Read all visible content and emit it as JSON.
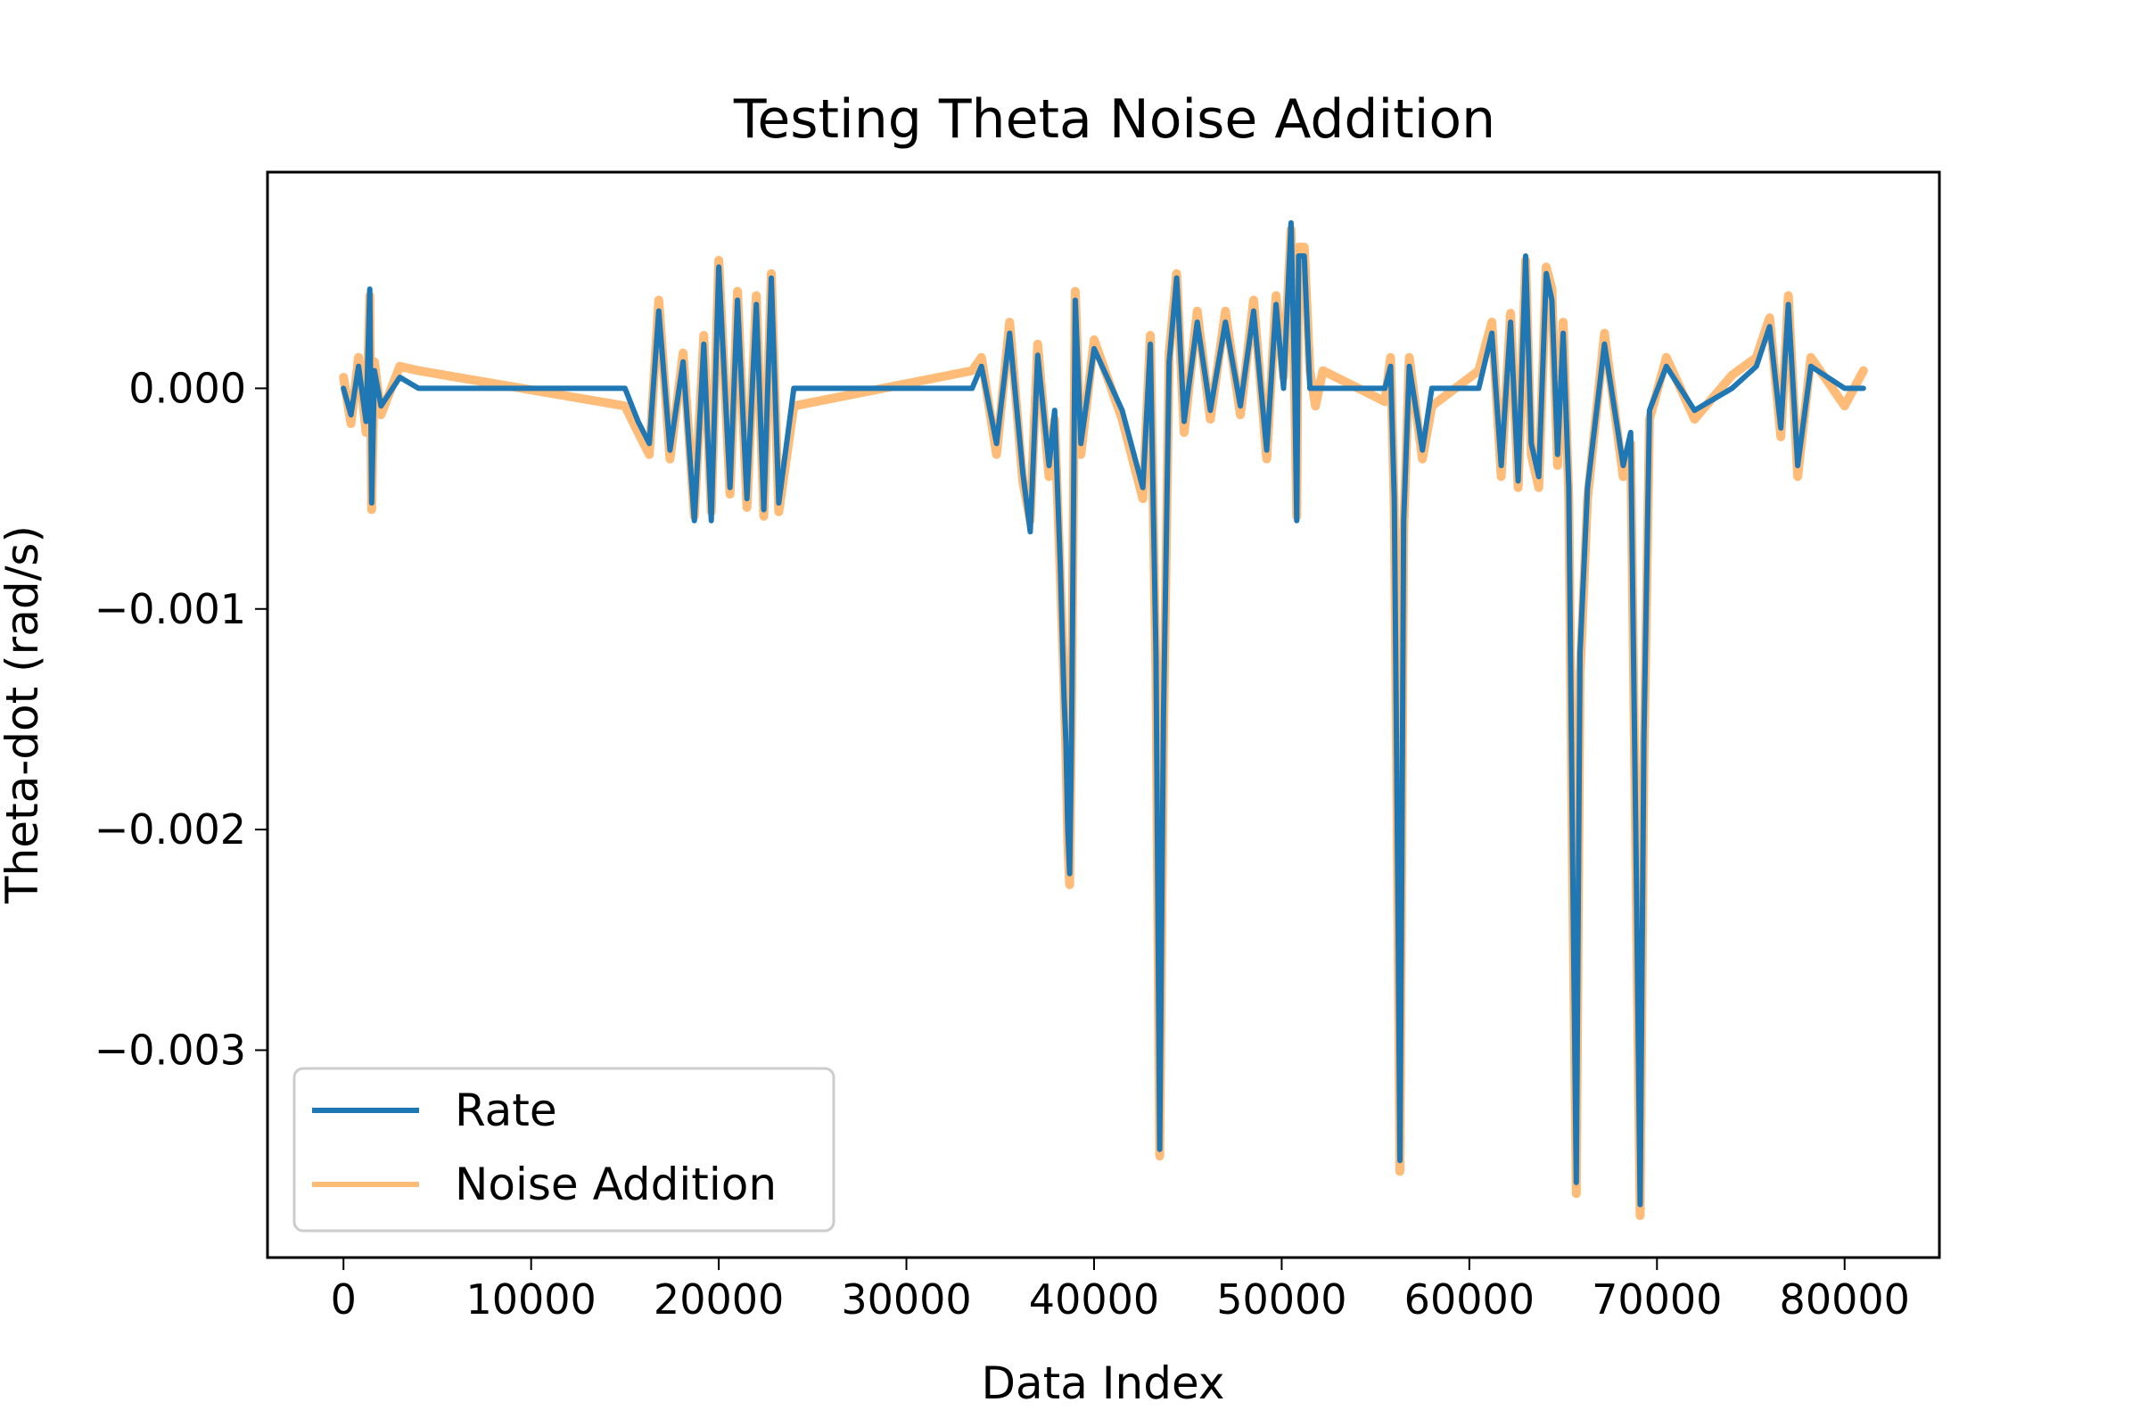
{
  "chart_data": {
    "type": "line",
    "title": "Testing Theta Noise Addition",
    "xlabel": "Data Index",
    "ylabel": "Theta-dot (rad/s)",
    "xlim": [
      -4050,
      85050
    ],
    "ylim": [
      -0.00394,
      0.00098
    ],
    "xticks": [
      0,
      10000,
      20000,
      30000,
      40000,
      50000,
      60000,
      70000,
      80000
    ],
    "xtick_labels": [
      "0",
      "10000",
      "20000",
      "30000",
      "40000",
      "50000",
      "60000",
      "70000",
      "80000"
    ],
    "yticks": [
      0.0,
      -0.001,
      -0.002,
      -0.003
    ],
    "ytick_labels": [
      "0.000",
      "−0.001",
      "−0.002",
      "−0.003"
    ],
    "grid": false,
    "legend_position": "lower-left",
    "series": [
      {
        "name": "Rate",
        "color": "#1f77b4",
        "x": [
          0,
          400,
          800,
          1200,
          1400,
          1500,
          1650,
          2000,
          3000,
          4000,
          15000,
          15700,
          16300,
          16800,
          17400,
          18100,
          18700,
          19200,
          19600,
          20000,
          20600,
          21000,
          21500,
          22000,
          22400,
          22800,
          23200,
          24000,
          33500,
          34000,
          34800,
          35500,
          36200,
          36600,
          37000,
          37600,
          37900,
          38200,
          38400,
          38500,
          38600,
          38700,
          38800,
          39000,
          39300,
          40000,
          41500,
          42600,
          43000,
          43300,
          43500,
          43700,
          44000,
          44400,
          44800,
          45500,
          46200,
          47000,
          47800,
          48500,
          49200,
          49700,
          50100,
          50500,
          50700,
          50800,
          50900,
          51200,
          51500,
          51800,
          52200,
          55500,
          55800,
          56000,
          56200,
          56300,
          56400,
          56500,
          56800,
          57500,
          58000,
          60500,
          61200,
          61700,
          62200,
          62600,
          63000,
          63300,
          63700,
          64100,
          64400,
          64700,
          65000,
          65300,
          65500,
          65700,
          65900,
          66300,
          67200,
          68200,
          68600,
          68900,
          69100,
          69300,
          69600,
          70500,
          72000,
          74000,
          75300,
          76000,
          76600,
          77000,
          77500,
          78200,
          80000,
          81000
        ],
        "y": [
          0.0,
          -0.00012,
          0.0001,
          -0.00015,
          0.00045,
          -0.00052,
          8e-05,
          -8e-05,
          5e-05,
          0.0,
          0.0,
          -0.00015,
          -0.00025,
          0.00035,
          -0.00028,
          0.00012,
          -0.0006,
          0.0002,
          -0.0006,
          0.00055,
          -0.00045,
          0.0004,
          -0.0005,
          0.00038,
          -0.00055,
          0.0005,
          -0.00052,
          0.0,
          0.0,
          0.0001,
          -0.00025,
          0.00025,
          -0.00038,
          -0.00065,
          0.00015,
          -0.00035,
          -0.0001,
          -0.0008,
          -0.0014,
          -0.0016,
          -0.002,
          -0.0022,
          -0.0016,
          0.0004,
          -0.00025,
          0.00018,
          -0.0001,
          -0.00045,
          0.0002,
          -0.0012,
          -0.00345,
          -0.0015,
          0.00012,
          0.0005,
          -0.00015,
          0.0003,
          -0.0001,
          0.0003,
          -8e-05,
          0.00035,
          -0.00028,
          0.00038,
          0.0,
          0.00075,
          0.0,
          -0.0006,
          0.0006,
          0.0006,
          0.0,
          0.0,
          0.0,
          0.0,
          0.0001,
          -0.0005,
          -0.0024,
          -0.0035,
          -0.0022,
          -0.0006,
          0.0001,
          -0.00028,
          0.0,
          0.0,
          0.00025,
          -0.00035,
          0.0003,
          -0.00042,
          0.0006,
          -0.00025,
          -0.0004,
          0.00052,
          0.0004,
          -0.0003,
          0.00025,
          -0.00045,
          -0.0021,
          -0.0036,
          -0.0012,
          -0.00045,
          0.0002,
          -0.00035,
          -0.0002,
          -0.0022,
          -0.0037,
          -0.0016,
          -0.0001,
          0.0001,
          -0.0001,
          0.0,
          0.0001,
          0.00028,
          -0.00018,
          0.00038,
          -0.00035,
          0.0001,
          0.0,
          0.0
        ]
      },
      {
        "name": "Noise Addition",
        "color": "#ffbb78",
        "x": [
          0,
          400,
          800,
          1200,
          1400,
          1500,
          1650,
          2000,
          3000,
          4000,
          15000,
          15700,
          16300,
          16800,
          17400,
          18100,
          18700,
          19200,
          19600,
          20000,
          20600,
          21000,
          21500,
          22000,
          22400,
          22800,
          23200,
          24000,
          33500,
          34000,
          34800,
          35500,
          36200,
          36600,
          37000,
          37600,
          37900,
          38200,
          38400,
          38500,
          38600,
          38700,
          38800,
          39000,
          39300,
          40000,
          41500,
          42600,
          43000,
          43300,
          43500,
          43700,
          44000,
          44400,
          44800,
          45500,
          46200,
          47000,
          47800,
          48500,
          49200,
          49700,
          50100,
          50500,
          50700,
          50800,
          50900,
          51200,
          51500,
          51800,
          52200,
          55500,
          55800,
          56000,
          56200,
          56300,
          56400,
          56500,
          56800,
          57500,
          58000,
          60500,
          61200,
          61700,
          62200,
          62600,
          63000,
          63300,
          63700,
          64100,
          64400,
          64700,
          65000,
          65300,
          65500,
          65700,
          65900,
          66300,
          67200,
          68200,
          68600,
          68900,
          69100,
          69300,
          69600,
          70500,
          72000,
          74000,
          75300,
          76000,
          76600,
          77000,
          77500,
          78200,
          80000,
          81000
        ],
        "y": [
          5e-05,
          -0.00016,
          0.00014,
          -0.0002,
          0.00042,
          -0.00055,
          0.00012,
          -0.00012,
          0.0001,
          8e-05,
          -8e-05,
          -0.0002,
          -0.0003,
          0.0004,
          -0.00032,
          0.00016,
          -0.00058,
          0.00024,
          -0.00056,
          0.00058,
          -0.00048,
          0.00044,
          -0.00054,
          0.00042,
          -0.00058,
          0.00052,
          -0.00056,
          -8e-05,
          8e-05,
          0.00014,
          -0.0003,
          0.0003,
          -0.00042,
          -0.0006,
          0.0002,
          -0.0004,
          -0.00014,
          -0.00085,
          -0.00135,
          -0.00165,
          -0.00205,
          -0.00225,
          -0.0015,
          0.00044,
          -0.0003,
          0.00022,
          -0.00014,
          -0.0005,
          0.00024,
          -0.0013,
          -0.00348,
          -0.0016,
          0.00016,
          0.00052,
          -0.0002,
          0.00035,
          -0.00014,
          0.00035,
          -0.00012,
          0.0004,
          -0.00032,
          0.00042,
          5e-05,
          0.00072,
          -5e-05,
          -0.00058,
          0.00064,
          0.00064,
          8e-05,
          -8e-05,
          8e-05,
          -6e-05,
          0.00014,
          -0.00055,
          -0.00245,
          -0.00355,
          -0.0021,
          -0.00065,
          0.00014,
          -0.00032,
          -8e-05,
          8e-05,
          0.0003,
          -0.0004,
          0.00034,
          -0.00045,
          0.00058,
          -0.0003,
          -0.00045,
          0.00055,
          0.00045,
          -0.00035,
          0.0003,
          -0.0005,
          -0.0022,
          -0.00365,
          -0.0013,
          -0.0005,
          0.00025,
          -0.0004,
          -0.00025,
          -0.0023,
          -0.00375,
          -0.0017,
          -0.00014,
          0.00014,
          -0.00014,
          6e-05,
          0.00014,
          0.00032,
          -0.00022,
          0.00042,
          -0.0004,
          0.00014,
          -8e-05,
          8e-05
        ]
      }
    ]
  }
}
